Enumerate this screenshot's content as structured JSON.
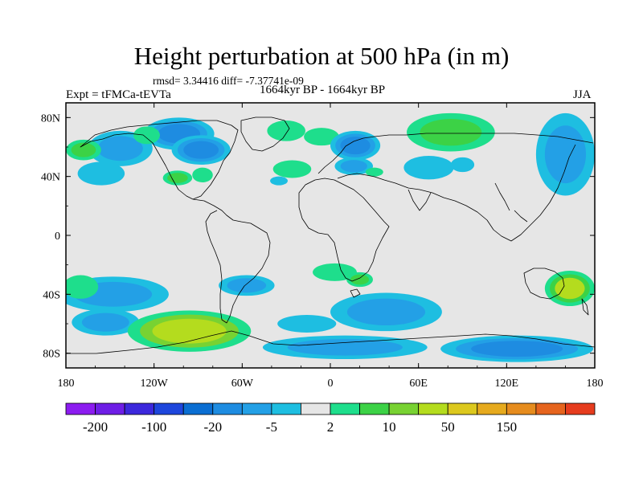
{
  "chart_data": {
    "type": "contour-map",
    "title": "Height perturbation at 500 hPa (in m)",
    "stats": "rmsd= 3.34416 diff= -7.37741e-09",
    "experiment": "Expt = tFMCa-tEVTa",
    "period": "1664kyr BP - 1664kyr BP",
    "season": "JJA",
    "xlim": [
      -180,
      180
    ],
    "ylim": [
      -90,
      90
    ],
    "x_ticks": [
      {
        "value": -180,
        "label": "180"
      },
      {
        "value": -120,
        "label": "120W"
      },
      {
        "value": -60,
        "label": "60W"
      },
      {
        "value": 0,
        "label": "0"
      },
      {
        "value": 60,
        "label": "60E"
      },
      {
        "value": 120,
        "label": "120E"
      },
      {
        "value": 180,
        "label": "180"
      }
    ],
    "y_ticks": [
      {
        "value": 80,
        "label": "80N"
      },
      {
        "value": 40,
        "label": "40N"
      },
      {
        "value": 0,
        "label": "0"
      },
      {
        "value": -40,
        "label": "40S"
      },
      {
        "value": -80,
        "label": "80S"
      }
    ],
    "colorbar": {
      "colors": [
        "#8c1cf0",
        "#6e1ee6",
        "#3c28dc",
        "#1e46dc",
        "#0a6ed2",
        "#1e8ce1",
        "#23a0e6",
        "#1ebee1",
        "#e6e6e6",
        "#1ede8c",
        "#3cd246",
        "#78d232",
        "#b4dc1e",
        "#dcc81e",
        "#e6aa1e",
        "#e68c1e",
        "#e6641e",
        "#e63c1e"
      ],
      "labels": [
        {
          "after_box": 1,
          "text": "-200"
        },
        {
          "after_box": 3,
          "text": "-100"
        },
        {
          "after_box": 5,
          "text": "-20"
        },
        {
          "after_box": 7,
          "text": "-5"
        },
        {
          "after_box": 9,
          "text": "2"
        },
        {
          "after_box": 11,
          "text": "10"
        },
        {
          "after_box": 13,
          "text": "50"
        },
        {
          "after_box": 15,
          "text": "150"
        }
      ]
    },
    "anomaly_regions": [
      {
        "lon": -143,
        "lat": 59,
        "rlon": 22,
        "rlat": 12,
        "colors": [
          "#1ebee1",
          "#23a0e6"
        ]
      },
      {
        "lon": -103,
        "lat": 69,
        "rlon": 24,
        "rlat": 11,
        "colors": [
          "#1ebee1",
          "#23a0e6",
          "#1e8ce1"
        ]
      },
      {
        "lon": -88,
        "lat": 58,
        "rlon": 20,
        "rlat": 10,
        "colors": [
          "#1ebee1",
          "#23a0e6",
          "#1e8ce1"
        ]
      },
      {
        "lon": -168,
        "lat": 58,
        "rlon": 12,
        "rlat": 7,
        "colors": [
          "#1ede8c",
          "#3cd246"
        ]
      },
      {
        "lon": -156,
        "lat": 42,
        "rlon": 16,
        "rlat": 8,
        "colors": [
          "#1ebee1"
        ]
      },
      {
        "lon": -125,
        "lat": 68,
        "rlon": 9,
        "rlat": 6,
        "colors": [
          "#1ede8c"
        ]
      },
      {
        "lon": -104,
        "lat": 39,
        "rlon": 10,
        "rlat": 5,
        "colors": [
          "#1ede8c",
          "#3cd246"
        ]
      },
      {
        "lon": -87,
        "lat": 41,
        "rlon": 7,
        "rlat": 5,
        "colors": [
          "#1ede8c"
        ]
      },
      {
        "lon": -30,
        "lat": 71,
        "rlon": 13,
        "rlat": 7,
        "colors": [
          "#1ede8c"
        ]
      },
      {
        "lon": -6,
        "lat": 67,
        "rlon": 12,
        "rlat": 6,
        "colors": [
          "#1ede8c"
        ]
      },
      {
        "lon": -26,
        "lat": 45,
        "rlon": 13,
        "rlat": 6,
        "colors": [
          "#1ede8c"
        ]
      },
      {
        "lon": -35,
        "lat": 37,
        "rlon": 6,
        "rlat": 3,
        "colors": [
          "#1ebee1"
        ]
      },
      {
        "lon": 17,
        "lat": 61,
        "rlon": 17,
        "rlat": 10,
        "colors": [
          "#1ebee1",
          "#23a0e6",
          "#1e8ce1"
        ]
      },
      {
        "lon": 16,
        "lat": 47,
        "rlon": 13,
        "rlat": 6,
        "colors": [
          "#1ebee1",
          "#23a0e6"
        ]
      },
      {
        "lon": 30,
        "lat": 43,
        "rlon": 6,
        "rlat": 3,
        "colors": [
          "#1ede8c"
        ]
      },
      {
        "lon": 82,
        "lat": 70,
        "rlon": 30,
        "rlat": 13,
        "colors": [
          "#1ede8c",
          "#3cd246"
        ]
      },
      {
        "lon": 67,
        "lat": 46,
        "rlon": 17,
        "rlat": 8,
        "colors": [
          "#1ebee1"
        ]
      },
      {
        "lon": 90,
        "lat": 48,
        "rlon": 8,
        "rlat": 5,
        "colors": [
          "#1ebee1"
        ]
      },
      {
        "lon": 160,
        "lat": 55,
        "rlon": 20,
        "rlat": 28,
        "colors": [
          "#1ebee1",
          "#23a0e6"
        ]
      },
      {
        "lon": -148,
        "lat": -40,
        "rlon": 38,
        "rlat": 12,
        "colors": [
          "#1ebee1",
          "#23a0e6"
        ]
      },
      {
        "lon": -170,
        "lat": -35,
        "rlon": 12,
        "rlat": 8,
        "colors": [
          "#1ede8c"
        ]
      },
      {
        "lon": -153,
        "lat": -59,
        "rlon": 23,
        "rlat": 9,
        "colors": [
          "#1ebee1",
          "#23a0e6"
        ]
      },
      {
        "lon": -57,
        "lat": -34,
        "rlon": 19,
        "rlat": 7,
        "colors": [
          "#1ebee1",
          "#23a0e6"
        ]
      },
      {
        "lon": -96,
        "lat": -65,
        "rlon": 42,
        "rlat": 14,
        "colors": [
          "#1ede8c",
          "#78d232",
          "#b4dc1e"
        ]
      },
      {
        "lon": 3,
        "lat": -25,
        "rlon": 15,
        "rlat": 6,
        "colors": [
          "#1ede8c"
        ]
      },
      {
        "lon": 20,
        "lat": -30,
        "rlon": 9,
        "rlat": 5,
        "colors": [
          "#1ede8c",
          "#3cd246"
        ]
      },
      {
        "lon": 38,
        "lat": -52,
        "rlon": 38,
        "rlat": 13,
        "colors": [
          "#1ebee1",
          "#23a0e6"
        ]
      },
      {
        "lon": -16,
        "lat": -60,
        "rlon": 20,
        "rlat": 6,
        "colors": [
          "#1ebee1"
        ]
      },
      {
        "lon": 10,
        "lat": -76,
        "rlon": 56,
        "rlat": 8,
        "colors": [
          "#1ebee1",
          "#23a0e6"
        ]
      },
      {
        "lon": 127,
        "lat": -77,
        "rlon": 52,
        "rlat": 9,
        "colors": [
          "#1ebee1",
          "#23a0e6",
          "#1e8ce1"
        ]
      },
      {
        "lon": 163,
        "lat": -36,
        "rlon": 17,
        "rlat": 12,
        "colors": [
          "#1ede8c",
          "#3cd246",
          "#b4dc1e"
        ]
      }
    ]
  }
}
